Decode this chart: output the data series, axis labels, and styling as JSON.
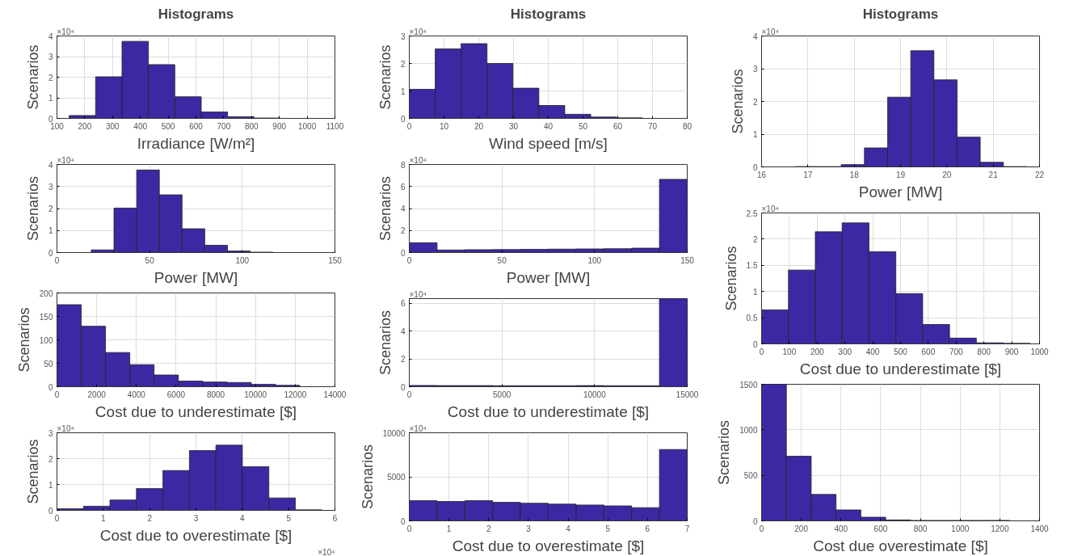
{
  "chart_data": [
    {
      "type": "histogram",
      "title": "Histograms",
      "xlabel": "Irradiance [W/m²]",
      "ylabel": "Scenarios",
      "color": "#3c28a3",
      "grid": true,
      "annotations": [
        "×10⁴"
      ],
      "bins": [
        144,
        239,
        334,
        429,
        524,
        619,
        714,
        809,
        904,
        999,
        1094
      ],
      "values": [
        0.14,
        2.02,
        3.74,
        2.61,
        1.05,
        0.31,
        0.08,
        0.02,
        null,
        null
      ],
      "xlim": [
        100,
        1100
      ],
      "xticks": [
        100,
        200,
        300,
        400,
        500,
        600,
        700,
        800,
        900,
        1000,
        1100
      ],
      "ylim": [
        0,
        4
      ],
      "yticks": [
        0,
        1,
        2,
        3,
        4
      ]
    },
    {
      "type": "histogram",
      "xlabel": "Power [MW]",
      "ylabel": "Scenarios",
      "color": "#3c28a3",
      "grid": true,
      "annotations": [
        "×10⁴"
      ],
      "bins": [
        18.5,
        30.75,
        43,
        55.25,
        67.5,
        79.75,
        92,
        104.25,
        116.5,
        128.75,
        141
      ],
      "values": [
        0.12,
        2.02,
        3.75,
        2.62,
        1.08,
        0.33,
        0.07,
        0.02,
        null,
        null
      ],
      "xlim": [
        0,
        150
      ],
      "xticks": [
        0,
        50,
        100,
        150
      ],
      "ylim": [
        0,
        4
      ],
      "yticks": [
        0,
        1,
        2,
        3,
        4
      ]
    },
    {
      "type": "histogram",
      "xlabel": "Cost due to underestimate [$]",
      "ylabel": "Scenarios",
      "color": "#3c28a3",
      "grid": true,
      "bins": [
        0,
        1223,
        2446,
        3669,
        4892,
        6115,
        7338,
        8561,
        9784,
        11007,
        12230
      ],
      "values": [
        175,
        129,
        73,
        47,
        25,
        12,
        10,
        9,
        5,
        3
      ],
      "xlim": [
        0,
        14000
      ],
      "xticks": [
        0,
        2000,
        4000,
        6000,
        8000,
        10000,
        12000,
        14000
      ],
      "ylim": [
        0,
        200
      ],
      "yticks": [
        0,
        50,
        100,
        150,
        200
      ]
    },
    {
      "type": "histogram",
      "xlabel": "Cost due to overestimate [$]",
      "ylabel": "Scenarios",
      "color": "#3c28a3",
      "grid": true,
      "annotations": [
        "×10⁴",
        "×10⁴"
      ],
      "bins": [
        0,
        0.572,
        1.143,
        1.715,
        2.287,
        2.859,
        3.43,
        4.002,
        4.574,
        5.145,
        5.717
      ],
      "values": [
        0.06,
        0.16,
        0.4,
        0.84,
        1.54,
        2.31,
        2.52,
        1.69,
        0.48,
        0.02
      ],
      "xlim": [
        0,
        6
      ],
      "xticks": [
        0,
        1,
        2,
        3,
        4,
        5,
        6
      ],
      "ylim": [
        0,
        3
      ],
      "yticks": [
        0,
        1,
        2,
        3
      ]
    },
    {
      "type": "histogram",
      "title": "Histograms",
      "xlabel": "Wind speed [m/s]",
      "ylabel": "Scenarios",
      "color": "#3c28a3",
      "grid": true,
      "annotations": [
        "×10⁴"
      ],
      "bins": [
        0,
        7.46,
        14.92,
        22.38,
        29.84,
        37.3,
        44.76,
        52.22,
        59.68,
        67.14,
        74.6
      ],
      "values": [
        1.06,
        2.53,
        2.72,
        2.0,
        1.1,
        0.47,
        0.15,
        0.05,
        0.02,
        null
      ],
      "xlim": [
        0,
        80
      ],
      "xticks": [
        0,
        10,
        20,
        30,
        40,
        50,
        60,
        70,
        80
      ],
      "ylim": [
        0,
        3
      ],
      "yticks": [
        0,
        1,
        2,
        3
      ]
    },
    {
      "type": "histogram",
      "xlabel": "Power [MW]",
      "ylabel": "Scenarios",
      "color": "#3c28a3",
      "grid": true,
      "annotations": [
        "×10⁴"
      ],
      "bins": [
        0,
        15,
        30,
        45,
        60,
        75,
        90,
        105,
        120,
        135,
        150
      ],
      "values": [
        0.89,
        0.23,
        0.26,
        0.27,
        0.29,
        0.31,
        0.33,
        0.35,
        0.4,
        6.65
      ],
      "xlim": [
        0,
        150
      ],
      "xticks": [
        0,
        50,
        100,
        150
      ],
      "ylim": [
        0,
        8
      ],
      "yticks": [
        0,
        2,
        4,
        6,
        8
      ]
    },
    {
      "type": "histogram",
      "xlabel": "Cost due to underestimate [$]",
      "ylabel": "Scenarios",
      "color": "#3c28a3",
      "grid": true,
      "annotations": [
        "×10⁴"
      ],
      "bins": [
        0,
        1500,
        3000,
        4500,
        6000,
        7500,
        9000,
        10500,
        12000,
        13500,
        15000
      ],
      "values": [
        0.09,
        0.08,
        0.08,
        0.07,
        0.07,
        0.07,
        0.08,
        0.07,
        0.07,
        6.34
      ],
      "xlim": [
        0,
        15000
      ],
      "xticks": [
        0,
        5000,
        10000,
        15000
      ],
      "ylim": [
        0,
        6.34
      ],
      "yticks": [
        0,
        2,
        4,
        6
      ]
    },
    {
      "type": "histogram",
      "xlabel": "Cost due to overestimate [$]",
      "ylabel": "Scenarios",
      "color": "#3c28a3",
      "grid": true,
      "annotations": [
        "×10⁴"
      ],
      "bins": [
        0,
        0.7,
        1.4,
        2.1,
        2.8,
        3.5,
        4.2,
        4.9,
        5.6,
        6.3,
        7
      ],
      "values": [
        2300,
        2200,
        2300,
        2100,
        2000,
        1900,
        1800,
        1700,
        1500,
        8100
      ],
      "xlim": [
        0,
        7
      ],
      "xticks": [
        0,
        1,
        2,
        3,
        4,
        5,
        6,
        7
      ],
      "ylim": [
        0,
        10000
      ],
      "yticks": [
        0,
        5000,
        10000
      ]
    },
    {
      "type": "histogram",
      "title": "Histograms",
      "xlabel": "Power [MW]",
      "ylabel": "Scenarios",
      "color": "#3c28a3",
      "grid": true,
      "annotations": [
        "×10⁴"
      ],
      "bins": [
        16.72,
        17.22,
        17.72,
        18.22,
        18.72,
        19.22,
        19.72,
        20.22,
        20.72,
        21.22,
        21.72
      ],
      "values": [
        0.01,
        0.01,
        0.07,
        0.58,
        2.13,
        3.55,
        2.66,
        0.91,
        0.14,
        0.01
      ],
      "xlim": [
        16,
        22
      ],
      "xticks": [
        16,
        17,
        18,
        19,
        20,
        21,
        22
      ],
      "ylim": [
        0,
        4
      ],
      "yticks": [
        0,
        1,
        2,
        3,
        4
      ]
    },
    {
      "type": "histogram",
      "xlabel": "Cost due to underestimate [$]",
      "ylabel": "Scenarios",
      "color": "#3c28a3",
      "grid": true,
      "annotations": [
        "×10⁴"
      ],
      "bins": [
        0,
        96.6,
        193.2,
        289.8,
        386.4,
        483,
        579.6,
        676.2,
        772.8,
        869.4,
        966
      ],
      "values": [
        0.65,
        1.41,
        2.14,
        2.31,
        1.76,
        0.96,
        0.37,
        0.11,
        0.02,
        0.01
      ],
      "xlim": [
        0,
        1000
      ],
      "xticks": [
        0,
        100,
        200,
        300,
        400,
        500,
        600,
        700,
        800,
        900,
        1000
      ],
      "ylim": [
        0,
        2.5
      ],
      "yticks": [
        0,
        0.5,
        1,
        1.5,
        2,
        2.5
      ]
    },
    {
      "type": "histogram",
      "xlabel": "Cost due overestimate [$]",
      "ylabel": "Scenarios",
      "color": "#3c28a3",
      "grid": true,
      "bins": [
        0,
        125,
        250,
        375,
        500,
        625,
        750,
        875,
        1000,
        1125,
        1250
      ],
      "values": [
        1500,
        710,
        290,
        120,
        40,
        10,
        5,
        5,
        5,
        5
      ],
      "xlim": [
        0,
        1400
      ],
      "xticks": [
        0,
        200,
        400,
        600,
        800,
        1000,
        1200,
        1400
      ],
      "ylim": [
        0,
        1500
      ],
      "yticks": [
        0,
        500,
        1000,
        1500
      ]
    }
  ]
}
